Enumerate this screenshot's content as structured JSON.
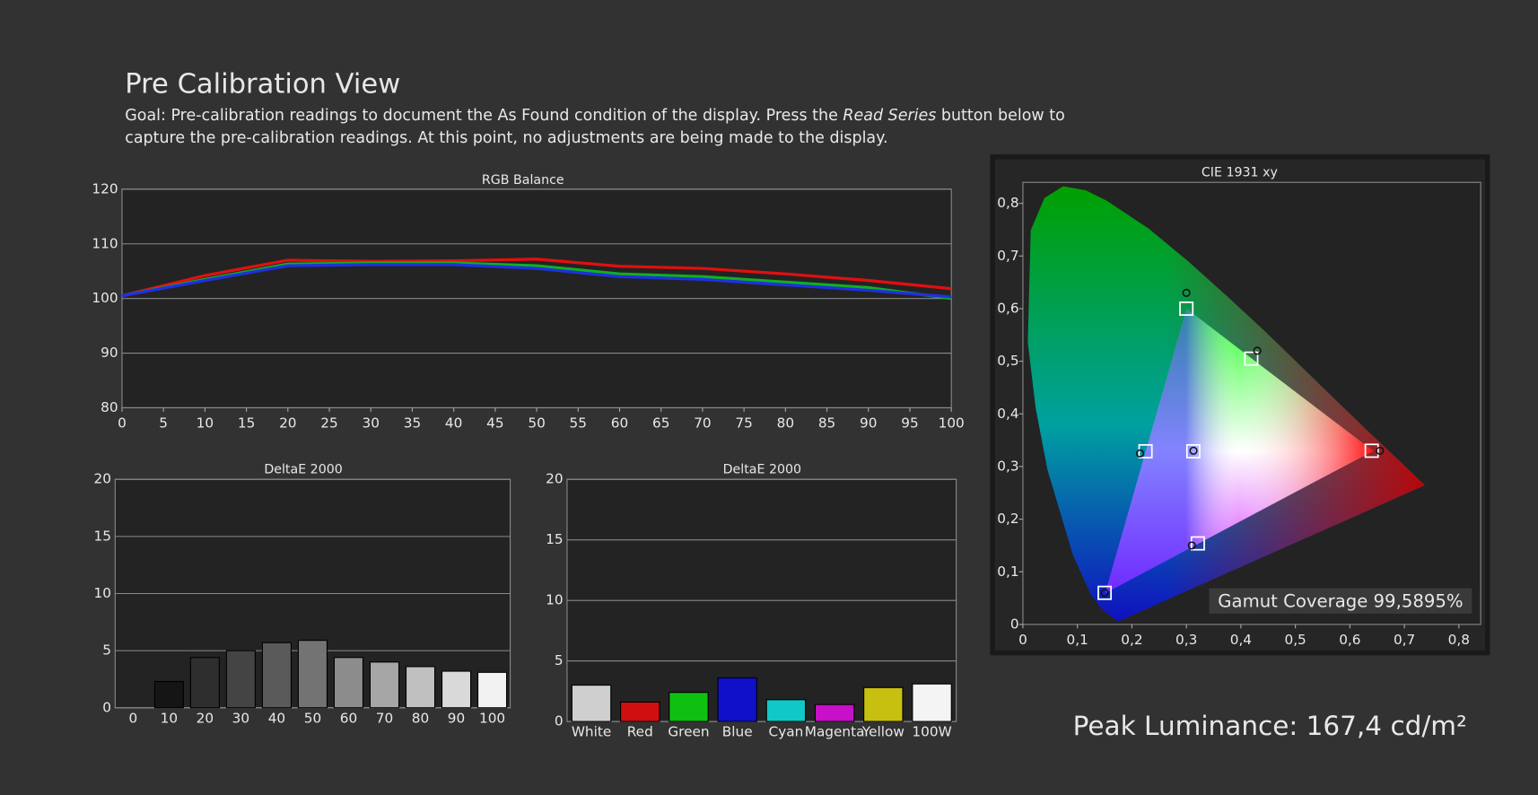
{
  "header": {
    "title": "Pre Calibration View",
    "goal": [
      [
        "Goal: Pre-calibration readings to document the As Found condition of the display. Press the ",
        "Read Series",
        " button below to"
      ],
      [
        "capture the pre-calibration readings. At this point, no adjustments are being made to the display."
      ]
    ]
  },
  "chart_data": [
    {
      "type": "line",
      "title": "RGB Balance",
      "x": [
        0,
        10,
        20,
        30,
        40,
        50,
        60,
        70,
        80,
        90,
        100
      ],
      "series": [
        {
          "color": "#e01010",
          "values": [
            100.5,
            104.2,
            107,
            106.8,
            106.9,
            107.2,
            105.9,
            105.5,
            104.5,
            103.3,
            101.8
          ]
        },
        {
          "color": "#10b020",
          "values": [
            100.5,
            103.5,
            106.3,
            106.5,
            106.5,
            106,
            104.5,
            104,
            103,
            102,
            100
          ]
        },
        {
          "color": "#2030e0",
          "values": [
            100.5,
            103.3,
            106,
            106.2,
            106.2,
            105.5,
            104,
            103.5,
            102.5,
            101.5,
            100.3
          ]
        }
      ],
      "xlim": [
        0,
        100
      ],
      "xticks": [
        0,
        5,
        10,
        15,
        20,
        25,
        30,
        35,
        40,
        45,
        50,
        55,
        60,
        65,
        70,
        75,
        80,
        85,
        90,
        95,
        100
      ],
      "ylim": [
        80,
        120
      ],
      "yticks": [
        80,
        90,
        100,
        110,
        120
      ],
      "grid": true
    },
    {
      "type": "bar",
      "title": "DeltaE 2000",
      "categories": [
        "0",
        "10",
        "20",
        "30",
        "40",
        "50",
        "60",
        "70",
        "80",
        "90",
        "100"
      ],
      "values": [
        0,
        2.3,
        4.4,
        5.0,
        5.7,
        5.9,
        4.4,
        4.0,
        3.6,
        3.2,
        3.1
      ],
      "colors": [
        "#000000",
        "#151515",
        "#2e2e2e",
        "#444444",
        "#5a5a5a",
        "#737373",
        "#8c8c8c",
        "#a6a6a6",
        "#c0c0c0",
        "#d9d9d9",
        "#f2f2f2"
      ],
      "ylim": [
        0,
        20
      ],
      "yticks": [
        0,
        5,
        10,
        15,
        20
      ],
      "grid": true
    },
    {
      "type": "bar",
      "title": "DeltaE 2000",
      "categories": [
        "White",
        "Red",
        "Green",
        "Blue",
        "Cyan",
        "Magenta",
        "Yellow",
        "100W"
      ],
      "values": [
        3.0,
        1.6,
        2.4,
        3.6,
        1.8,
        1.4,
        2.8,
        3.1
      ],
      "colors": [
        "#cfcfcf",
        "#d01010",
        "#10c010",
        "#1010c8",
        "#10c8c8",
        "#c810c8",
        "#c8c010",
        "#f4f4f4"
      ],
      "ylim": [
        0,
        20
      ],
      "yticks": [
        0,
        5,
        10,
        15,
        20
      ],
      "grid": true
    },
    {
      "type": "scatter",
      "title": "CIE 1931 xy",
      "targets": {
        "x": [
          0.64,
          0.3,
          0.15,
          0.225,
          0.321,
          0.419,
          0.3127
        ],
        "y": [
          0.33,
          0.6,
          0.06,
          0.329,
          0.154,
          0.505,
          0.329
        ]
      },
      "measured": {
        "x": [
          0.655,
          0.3,
          0.15,
          0.215,
          0.31,
          0.43,
          0.313
        ],
        "y": [
          0.33,
          0.63,
          0.06,
          0.325,
          0.15,
          0.52,
          0.33
        ]
      },
      "xlim": [
        0,
        0.84
      ],
      "xticks": [
        0,
        {
          "value": 0.1,
          "label": "0,1"
        },
        {
          "value": 0.2,
          "label": "0,2"
        },
        {
          "value": 0.3,
          "label": "0,3"
        },
        {
          "value": 0.4,
          "label": "0,4"
        },
        {
          "value": 0.5,
          "label": "0,5"
        },
        {
          "value": 0.6,
          "label": "0,6"
        },
        {
          "value": 0.7,
          "label": "0,7"
        },
        {
          "value": 0.8,
          "label": "0,8"
        }
      ],
      "ylim": [
        0,
        0.84
      ],
      "yticks": [
        0,
        {
          "value": 0.1,
          "label": "0,1"
        },
        {
          "value": 0.2,
          "label": "0,2"
        },
        {
          "value": 0.3,
          "label": "0,3"
        },
        {
          "value": 0.4,
          "label": "0,4"
        },
        {
          "value": 0.5,
          "label": "0,5"
        },
        {
          "value": 0.6,
          "label": "0,6"
        },
        {
          "value": 0.7,
          "label": "0,7"
        },
        {
          "value": 0.8,
          "label": "0,8"
        }
      ],
      "grid": false,
      "annotation": "Gamut Coverage 99,5895%"
    }
  ],
  "peak_luminance": "Peak Luminance: 167,4 cd/m²"
}
